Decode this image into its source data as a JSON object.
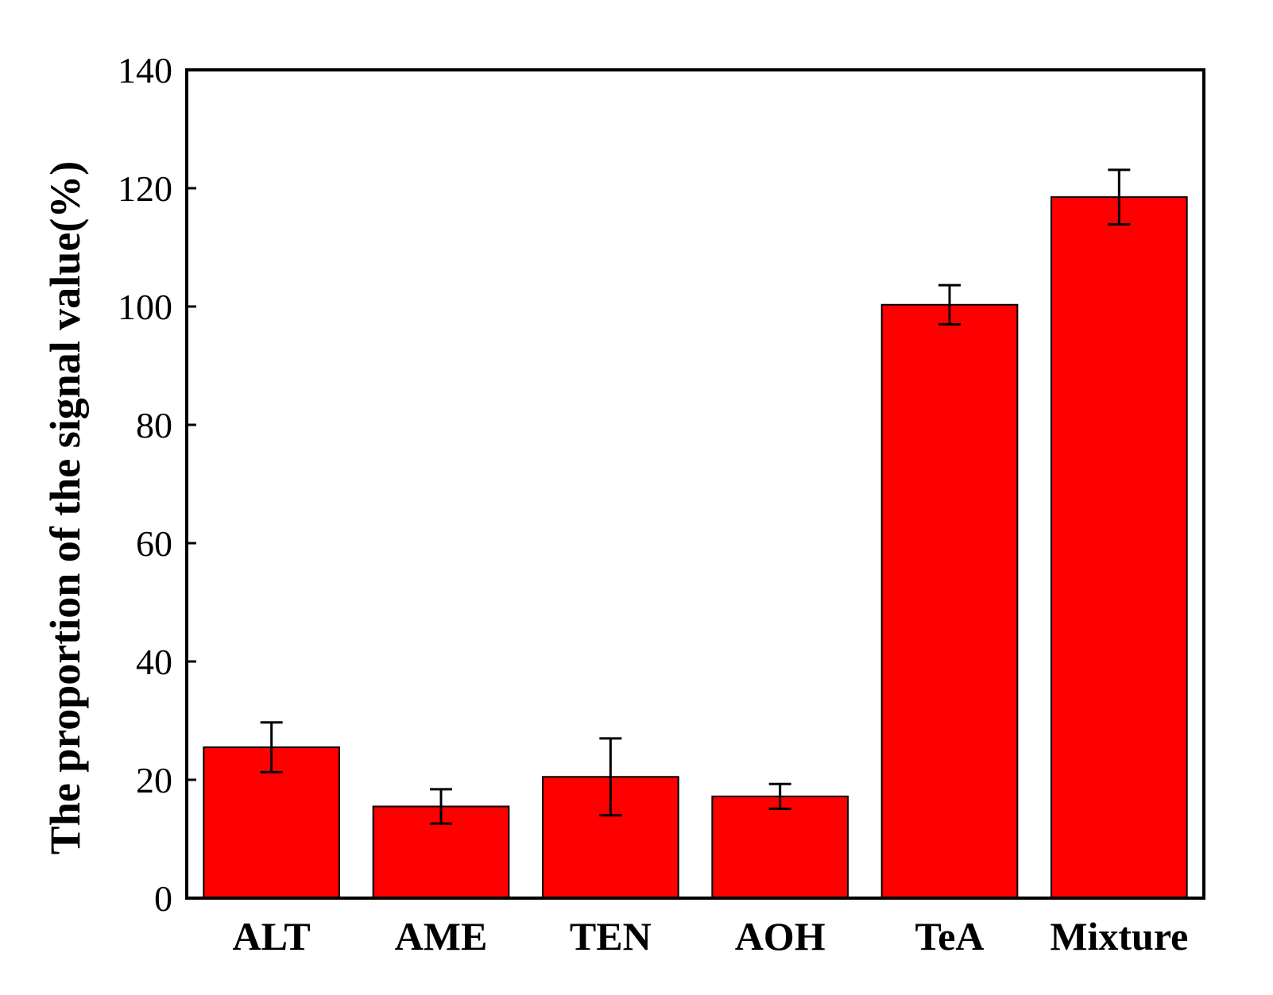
{
  "chart_data": {
    "type": "bar",
    "title": "",
    "xlabel": "",
    "ylabel": "The proportion of the signal value(%)",
    "categories": [
      "ALT",
      "AME",
      "TEN",
      "AOH",
      "TeA",
      "Mixture"
    ],
    "values": [
      25.5,
      15.5,
      20.5,
      17.2,
      100.3,
      118.5
    ],
    "error": [
      4.2,
      2.9,
      6.5,
      2.1,
      3.3,
      4.6
    ],
    "ylim": [
      0,
      140
    ],
    "yticks": [
      0,
      20,
      40,
      60,
      80,
      100,
      120,
      140
    ],
    "grid": false,
    "legend": "none",
    "bar_color": "#ff0000",
    "edge_color": "#000000"
  }
}
